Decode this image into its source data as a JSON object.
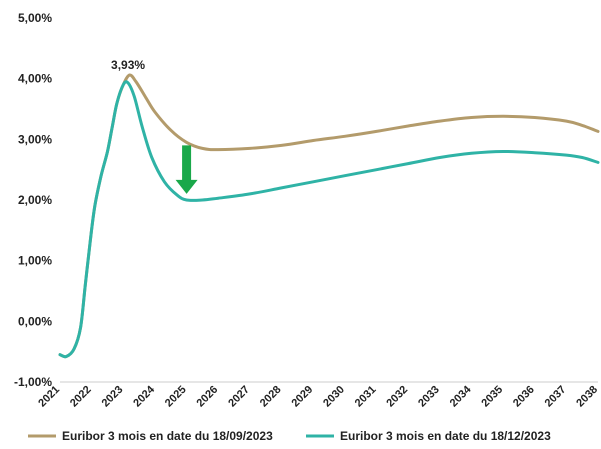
{
  "chart_data": {
    "type": "line",
    "title": "",
    "xlabel": "",
    "ylabel": "",
    "xlim": [
      2021,
      2038
    ],
    "ylim": [
      -1,
      5
    ],
    "grid": false,
    "legend_position": "bottom",
    "y_ticks": [
      {
        "value": 5,
        "label": "5,00%"
      },
      {
        "value": 4,
        "label": "4,00%"
      },
      {
        "value": 3,
        "label": "3,00%"
      },
      {
        "value": 2,
        "label": "2,00%"
      },
      {
        "value": 1,
        "label": "1,00%"
      },
      {
        "value": 0,
        "label": "0,00%"
      },
      {
        "value": -1,
        "label": "-1,00%"
      }
    ],
    "x_ticks": [
      "2021",
      "2022",
      "2023",
      "2024",
      "2025",
      "2026",
      "2027",
      "2028",
      "2029",
      "2030",
      "2031",
      "2032",
      "2033",
      "2034",
      "2035",
      "2036",
      "2037",
      "2038"
    ],
    "series": [
      {
        "name": "Euribor 3 mois en date du 18/09/2023",
        "color": "#b39b6b",
        "points": [
          [
            2021.0,
            -0.55
          ],
          [
            2021.2,
            -0.58
          ],
          [
            2021.45,
            -0.45
          ],
          [
            2021.65,
            -0.1
          ],
          [
            2021.8,
            0.6
          ],
          [
            2021.95,
            1.3
          ],
          [
            2022.1,
            1.9
          ],
          [
            2022.3,
            2.4
          ],
          [
            2022.5,
            2.8
          ],
          [
            2022.65,
            3.2
          ],
          [
            2022.8,
            3.6
          ],
          [
            2023.0,
            3.9
          ],
          [
            2023.2,
            4.06
          ],
          [
            2023.4,
            3.95
          ],
          [
            2023.7,
            3.7
          ],
          [
            2024.0,
            3.45
          ],
          [
            2024.5,
            3.15
          ],
          [
            2025.0,
            2.95
          ],
          [
            2025.5,
            2.85
          ],
          [
            2026.0,
            2.83
          ],
          [
            2027.0,
            2.85
          ],
          [
            2028.0,
            2.9
          ],
          [
            2029.0,
            2.98
          ],
          [
            2030.0,
            3.05
          ],
          [
            2031.0,
            3.13
          ],
          [
            2032.0,
            3.22
          ],
          [
            2033.0,
            3.3
          ],
          [
            2034.0,
            3.36
          ],
          [
            2035.0,
            3.38
          ],
          [
            2036.0,
            3.36
          ],
          [
            2037.0,
            3.3
          ],
          [
            2037.5,
            3.23
          ],
          [
            2038.0,
            3.13
          ]
        ]
      },
      {
        "name": "Euribor 3 mois en date du 18/12/2023",
        "color": "#2fb3a6",
        "points": [
          [
            2021.0,
            -0.55
          ],
          [
            2021.2,
            -0.58
          ],
          [
            2021.45,
            -0.45
          ],
          [
            2021.65,
            -0.1
          ],
          [
            2021.8,
            0.6
          ],
          [
            2021.95,
            1.3
          ],
          [
            2022.1,
            1.9
          ],
          [
            2022.3,
            2.4
          ],
          [
            2022.5,
            2.8
          ],
          [
            2022.65,
            3.2
          ],
          [
            2022.8,
            3.6
          ],
          [
            2023.0,
            3.9
          ],
          [
            2023.15,
            3.93
          ],
          [
            2023.35,
            3.7
          ],
          [
            2023.6,
            3.2
          ],
          [
            2023.9,
            2.7
          ],
          [
            2024.3,
            2.3
          ],
          [
            2024.7,
            2.08
          ],
          [
            2025.0,
            2.0
          ],
          [
            2025.5,
            2.0
          ],
          [
            2026.0,
            2.03
          ],
          [
            2027.0,
            2.1
          ],
          [
            2028.0,
            2.2
          ],
          [
            2029.0,
            2.3
          ],
          [
            2030.0,
            2.4
          ],
          [
            2031.0,
            2.5
          ],
          [
            2032.0,
            2.6
          ],
          [
            2033.0,
            2.7
          ],
          [
            2034.0,
            2.77
          ],
          [
            2035.0,
            2.8
          ],
          [
            2036.0,
            2.78
          ],
          [
            2037.0,
            2.74
          ],
          [
            2037.5,
            2.7
          ],
          [
            2038.0,
            2.62
          ]
        ]
      }
    ],
    "annotations": [
      {
        "text": "3,93%",
        "x": 2023.15,
        "y": 3.93
      }
    ],
    "arrow": {
      "x": 2025.0,
      "y_from": 2.9,
      "y_to": 2.1,
      "color": "#1aa84a"
    }
  }
}
